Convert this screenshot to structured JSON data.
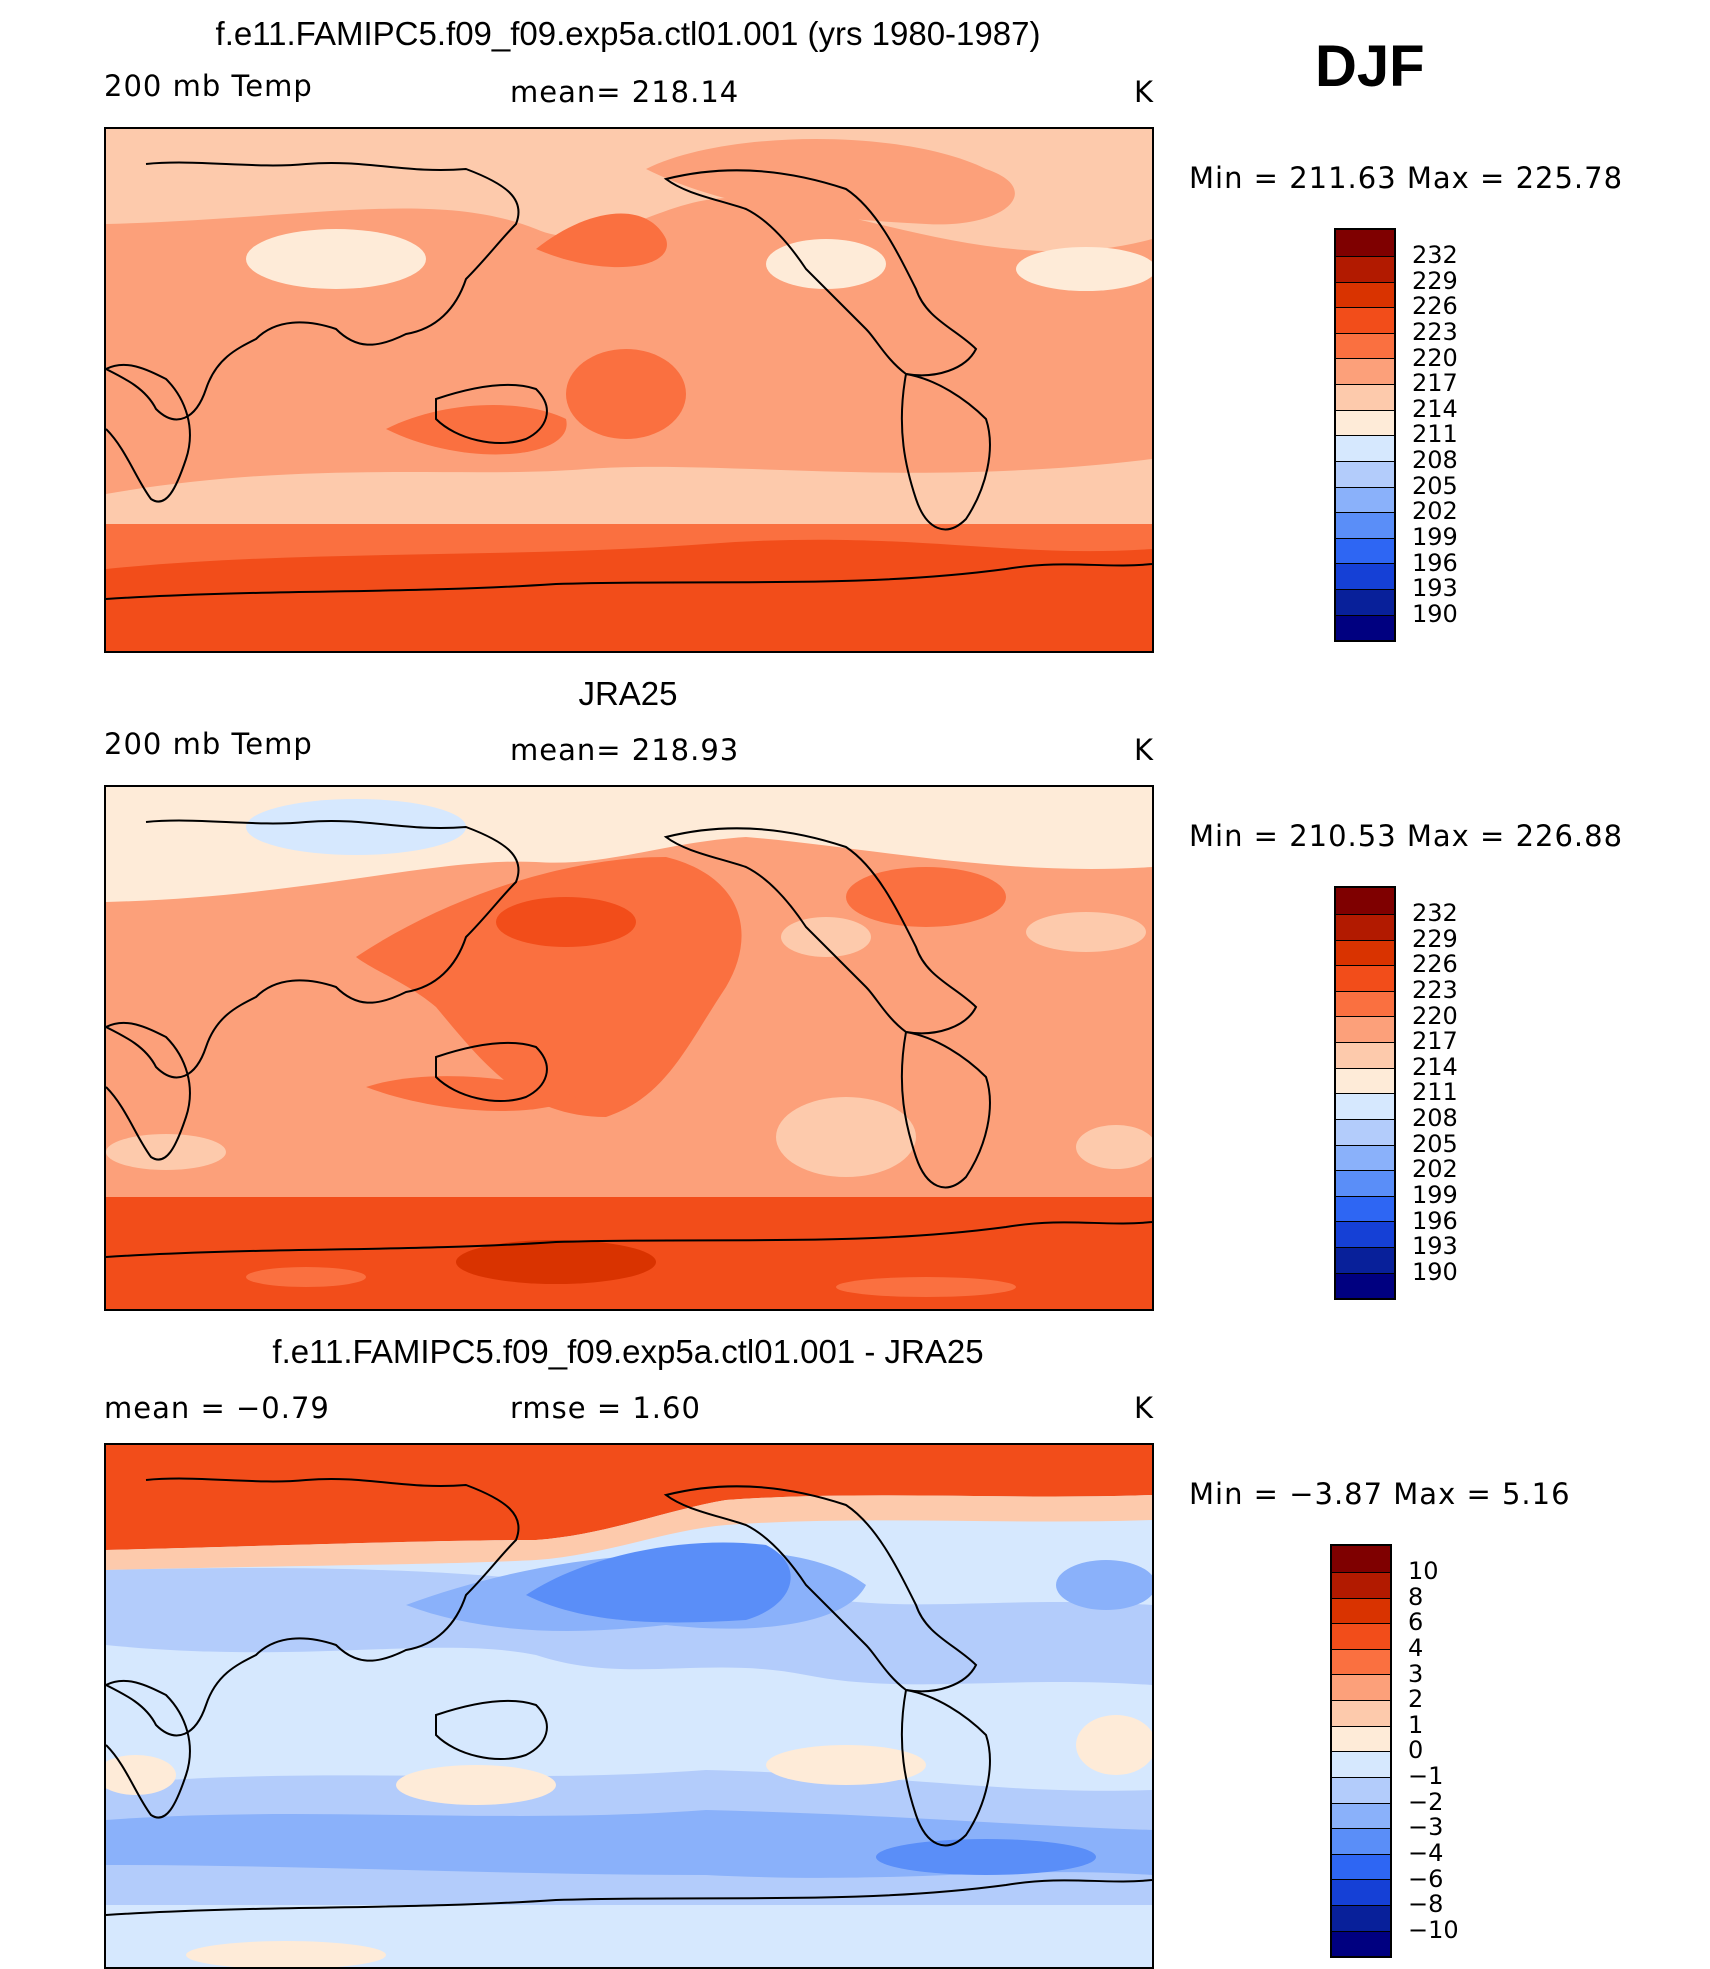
{
  "season": "DJF",
  "units": "K",
  "panels": [
    {
      "title": "f.e11.FAMIPC5.f09_f09.exp5a.ctl01.001 (yrs 1980-1987)",
      "left_label": "200 mb Temp",
      "center_label": "mean=  218.14",
      "right_label": "K",
      "minmax": "Min  =  211.63  Max  =  225.78"
    },
    {
      "title": "JRA25",
      "left_label": "200 mb Temp",
      "center_label": "mean=  218.93",
      "right_label": "K",
      "minmax": "Min  =  210.53  Max  =  226.88"
    },
    {
      "title": "f.e11.FAMIPC5.f09_f09.exp5a.ctl01.001 - JRA25",
      "left_label": "mean  =    −0.79",
      "center_label": "rmse  =     1.60",
      "right_label": "K",
      "minmax": "Min  =    −3.87  Max  =      5.16"
    }
  ],
  "chart_data": [
    {
      "type": "heatmap",
      "title": "f.e11.FAMIPC5.f09_f09.exp5a.ctl01.001 (yrs 1980-1987)",
      "variable": "200 mb Temp",
      "mean": 218.14,
      "min": 211.63,
      "max": 225.78,
      "units": "K",
      "colorbar_levels": [
        "232",
        "229",
        "226",
        "223",
        "220",
        "217",
        "214",
        "211",
        "208",
        "205",
        "202",
        "199",
        "196",
        "193",
        "190"
      ],
      "colors": [
        "#7f0000",
        "#b21a00",
        "#d93300",
        "#f24d1a",
        "#fa7040",
        "#fca07a",
        "#fdcaac",
        "#feebd8",
        "#d6e8fe",
        "#b3ccfb",
        "#8ab1fa",
        "#5a8ef8",
        "#2e66f3",
        "#1540d6",
        "#08209a",
        "#000080"
      ]
    },
    {
      "type": "heatmap",
      "title": "JRA25",
      "variable": "200 mb Temp",
      "mean": 218.93,
      "min": 210.53,
      "max": 226.88,
      "units": "K",
      "colorbar_levels": [
        "232",
        "229",
        "226",
        "223",
        "220",
        "217",
        "214",
        "211",
        "208",
        "205",
        "202",
        "199",
        "196",
        "193",
        "190"
      ],
      "colors": [
        "#7f0000",
        "#b21a00",
        "#d93300",
        "#f24d1a",
        "#fa7040",
        "#fca07a",
        "#fdcaac",
        "#feebd8",
        "#d6e8fe",
        "#b3ccfb",
        "#8ab1fa",
        "#5a8ef8",
        "#2e66f3",
        "#1540d6",
        "#08209a",
        "#000080"
      ]
    },
    {
      "type": "heatmap",
      "title": "f.e11.FAMIPC5.f09_f09.exp5a.ctl01.001 - JRA25",
      "variable": "difference",
      "mean": -0.79,
      "rmse": 1.6,
      "min": -3.87,
      "max": 5.16,
      "units": "K",
      "colorbar_levels": [
        "10",
        "8",
        "6",
        "4",
        "3",
        "2",
        "1",
        "0",
        "−1",
        "−2",
        "−3",
        "−4",
        "−6",
        "−8",
        "−10"
      ],
      "colors": [
        "#7f0000",
        "#b21a00",
        "#d93300",
        "#f24d1a",
        "#fa7040",
        "#fca07a",
        "#fdcaac",
        "#feebd8",
        "#d6e8fe",
        "#b3ccfb",
        "#8ab1fa",
        "#5a8ef8",
        "#2e66f3",
        "#1540d6",
        "#08209a",
        "#000080"
      ]
    }
  ]
}
